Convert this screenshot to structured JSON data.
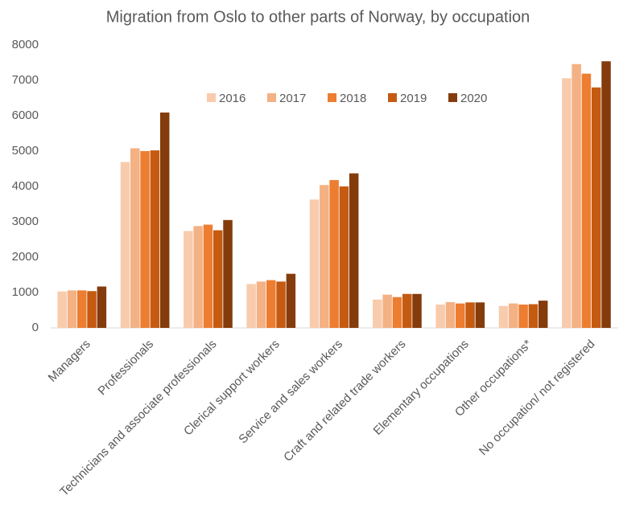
{
  "chart_data": {
    "type": "bar",
    "title": "Migration from Oslo to other parts of Norway, by occupation",
    "categories": [
      "Managers",
      "Professionals",
      "Technicians and associate professionals",
      "Clerical support workers",
      "Service and sales workers",
      "Craft and related trade workers",
      "Elementary occupations",
      "Other occupations*",
      "No occupation/ not registered"
    ],
    "series": [
      {
        "name": "2016",
        "color": "#f8cbad",
        "values": [
          1030,
          4690,
          2740,
          1240,
          3630,
          800,
          660,
          620,
          7060
        ]
      },
      {
        "name": "2017",
        "color": "#f4b183",
        "values": [
          1060,
          5080,
          2880,
          1310,
          4040,
          940,
          730,
          690,
          7460
        ]
      },
      {
        "name": "2018",
        "color": "#ed7d31",
        "values": [
          1060,
          5000,
          2920,
          1350,
          4180,
          870,
          690,
          660,
          7190
        ]
      },
      {
        "name": "2019",
        "color": "#c55a11",
        "values": [
          1040,
          5020,
          2760,
          1310,
          4000,
          960,
          720,
          670,
          6800
        ]
      },
      {
        "name": "2020",
        "color": "#843c0c",
        "values": [
          1170,
          6090,
          3050,
          1530,
          4370,
          960,
          720,
          770,
          7540
        ]
      }
    ],
    "ylim": [
      0,
      8000
    ],
    "yticks": [
      0,
      1000,
      2000,
      3000,
      4000,
      5000,
      6000,
      7000,
      8000
    ],
    "grid": false,
    "legend": "top"
  }
}
